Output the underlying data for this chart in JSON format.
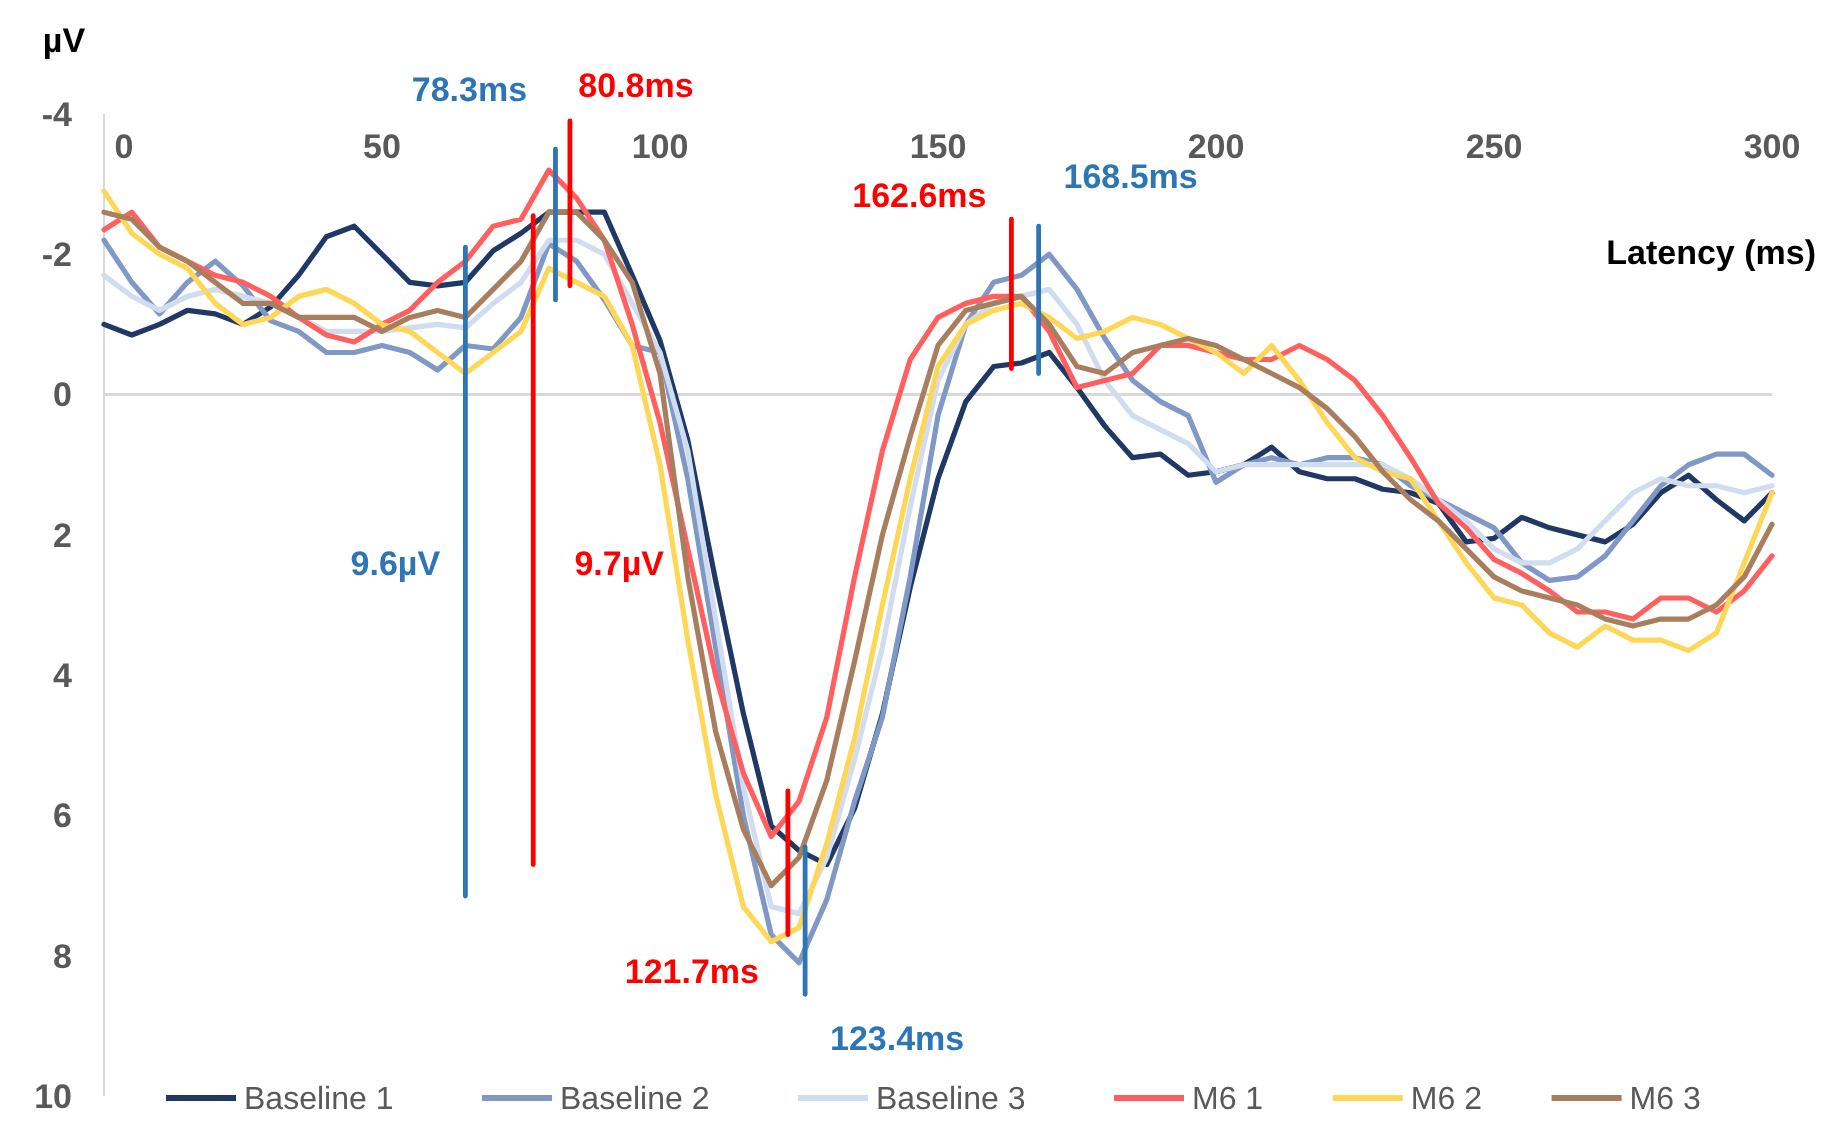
{
  "chart_data": {
    "type": "line",
    "xlabel": "Latency (ms)",
    "ylabel": "µV",
    "xlim": [
      0,
      300
    ],
    "xticks": [
      0,
      50,
      100,
      150,
      200,
      250,
      300
    ],
    "ylim": [
      10,
      -4
    ],
    "yticks": [
      -4,
      -2,
      0,
      2,
      4,
      6,
      8,
      10
    ],
    "legend": "bottom",
    "x": [
      0,
      5,
      10,
      15,
      20,
      25,
      30,
      35,
      40,
      45,
      50,
      55,
      60,
      65,
      70,
      75,
      80,
      85,
      90,
      95,
      100,
      105,
      110,
      115,
      120,
      125,
      130,
      135,
      140,
      145,
      150,
      155,
      160,
      165,
      170,
      175,
      180,
      185,
      190,
      195,
      200,
      205,
      210,
      215,
      220,
      225,
      230,
      235,
      240,
      245,
      250,
      255,
      260,
      265,
      270,
      275,
      280,
      285,
      290,
      295,
      300
    ],
    "series": [
      {
        "name": "Baseline 1",
        "color": "#1f3864",
        "values": [
          -1.0,
          -0.85,
          -1.0,
          -1.2,
          -1.15,
          -1.0,
          -1.25,
          -1.7,
          -2.25,
          -2.4,
          -2.0,
          -1.6,
          -1.55,
          -1.6,
          -2.05,
          -2.3,
          -2.6,
          -2.6,
          -2.6,
          -1.7,
          -0.77,
          0.65,
          2.65,
          4.55,
          6.15,
          6.5,
          6.7,
          5.9,
          4.55,
          2.75,
          1.2,
          0.1,
          -0.4,
          -0.45,
          -0.6,
          -0.1,
          0.45,
          0.9,
          0.85,
          1.15,
          1.1,
          1.0,
          0.75,
          1.1,
          1.2,
          1.2,
          1.35,
          1.4,
          1.55,
          2.1,
          2.05,
          1.75,
          1.9,
          2.0,
          2.1,
          1.85,
          1.4,
          1.15,
          1.5,
          1.8,
          1.4
        ]
      },
      {
        "name": "Baseline 2",
        "color": "#7f98c6",
        "values": [
          -2.2,
          -1.6,
          -1.15,
          -1.6,
          -1.9,
          -1.55,
          -1.05,
          -0.9,
          -0.6,
          -0.6,
          -0.7,
          -0.6,
          -0.35,
          -0.7,
          -0.65,
          -1.1,
          -2.15,
          -1.9,
          -1.35,
          -0.7,
          -0.6,
          1.2,
          3.6,
          6.0,
          7.7,
          8.1,
          7.2,
          5.8,
          4.6,
          2.6,
          0.3,
          -1.0,
          -1.6,
          -1.7,
          -2.0,
          -1.5,
          -0.8,
          -0.2,
          0.1,
          0.3,
          1.25,
          1.0,
          0.9,
          1.0,
          0.9,
          0.9,
          1.0,
          1.3,
          1.5,
          1.7,
          1.9,
          2.4,
          2.65,
          2.6,
          2.3,
          1.8,
          1.3,
          1.0,
          0.85,
          0.85,
          1.15
        ]
      },
      {
        "name": "Baseline 3",
        "color": "#d0dcef",
        "values": [
          -1.7,
          -1.4,
          -1.2,
          -1.4,
          -1.5,
          -1.4,
          -1.3,
          -1.1,
          -0.9,
          -0.9,
          -0.9,
          -0.95,
          -1.0,
          -0.95,
          -1.3,
          -1.6,
          -2.2,
          -2.2,
          -2.0,
          -1.3,
          -0.6,
          0.8,
          3.2,
          5.6,
          7.3,
          7.4,
          6.6,
          5.2,
          3.6,
          1.6,
          -0.2,
          -1.0,
          -1.3,
          -1.4,
          -1.5,
          -1.0,
          -0.2,
          0.3,
          0.5,
          0.7,
          1.1,
          1.0,
          1.0,
          1.0,
          1.0,
          1.0,
          1.0,
          1.2,
          1.5,
          1.8,
          2.2,
          2.4,
          2.4,
          2.2,
          1.8,
          1.4,
          1.2,
          1.3,
          1.3,
          1.4,
          1.3
        ]
      },
      {
        "name": "M6 1",
        "color": "#ff5f5f",
        "values": [
          -2.35,
          -2.6,
          -2.1,
          -1.9,
          -1.7,
          -1.6,
          -1.4,
          -1.1,
          -0.85,
          -0.75,
          -1.0,
          -1.2,
          -1.6,
          -1.9,
          -2.4,
          -2.5,
          -3.2,
          -2.8,
          -2.2,
          -1.0,
          0.4,
          2.2,
          4.0,
          5.4,
          6.3,
          5.8,
          4.6,
          2.6,
          0.8,
          -0.5,
          -1.1,
          -1.3,
          -1.4,
          -1.4,
          -0.9,
          -0.1,
          -0.2,
          -0.3,
          -0.7,
          -0.7,
          -0.6,
          -0.5,
          -0.5,
          -0.7,
          -0.5,
          -0.2,
          0.3,
          0.9,
          1.55,
          1.9,
          2.35,
          2.55,
          2.8,
          3.1,
          3.1,
          3.2,
          2.9,
          2.9,
          3.1,
          2.8,
          2.3
        ]
      },
      {
        "name": "M6 2",
        "color": "#ffd757",
        "values": [
          -2.9,
          -2.3,
          -2.0,
          -1.8,
          -1.3,
          -1.0,
          -1.1,
          -1.4,
          -1.5,
          -1.3,
          -1.0,
          -0.9,
          -0.6,
          -0.3,
          -0.6,
          -0.9,
          -1.8,
          -1.6,
          -1.4,
          -0.7,
          1.0,
          3.5,
          5.7,
          7.3,
          7.8,
          7.6,
          6.4,
          4.9,
          3.0,
          1.2,
          -0.4,
          -1.0,
          -1.2,
          -1.3,
          -1.1,
          -0.8,
          -0.9,
          -1.1,
          -1.0,
          -0.8,
          -0.6,
          -0.3,
          -0.7,
          -0.2,
          0.4,
          0.9,
          1.1,
          1.2,
          1.8,
          2.4,
          2.9,
          3.0,
          3.4,
          3.6,
          3.3,
          3.5,
          3.5,
          3.65,
          3.4,
          2.4,
          1.4
        ]
      },
      {
        "name": "M6 3",
        "color": "#a97e5e",
        "values": [
          -2.6,
          -2.5,
          -2.1,
          -1.9,
          -1.6,
          -1.3,
          -1.3,
          -1.1,
          -1.1,
          -1.1,
          -0.9,
          -1.1,
          -1.2,
          -1.1,
          -1.5,
          -1.9,
          -2.6,
          -2.6,
          -2.2,
          -1.6,
          -0.3,
          2.6,
          4.8,
          6.2,
          7.0,
          6.6,
          5.5,
          3.8,
          2.0,
          0.6,
          -0.7,
          -1.2,
          -1.3,
          -1.4,
          -1.0,
          -0.4,
          -0.3,
          -0.6,
          -0.7,
          -0.8,
          -0.7,
          -0.5,
          -0.3,
          -0.1,
          0.2,
          0.6,
          1.1,
          1.5,
          1.8,
          2.2,
          2.6,
          2.8,
          2.9,
          3.0,
          3.2,
          3.3,
          3.2,
          3.2,
          3.0,
          2.6,
          1.85
        ]
      },
      {
        "type": "line",
        "color": "#2e75b6",
        "x": [
          81.2,
          81.2
        ],
        "values": [
          -3.5,
          -1.35
        ]
      },
      {
        "type": "line",
        "color": "#ff0000",
        "x": [
          83.8,
          83.8
        ],
        "values": [
          -3.9,
          -1.55
        ]
      },
      {
        "type": "line",
        "color": "#2e75b6",
        "x": [
          65.0,
          65.0
        ],
        "values": [
          -2.1,
          7.15
        ]
      },
      {
        "type": "line",
        "color": "#ff0000",
        "x": [
          77.2,
          77.2
        ],
        "values": [
          -2.55,
          6.7
        ]
      },
      {
        "type": "line",
        "color": "#ff0000",
        "x": [
          123.0,
          123.0
        ],
        "values": [
          5.65,
          7.7
        ]
      },
      {
        "type": "line",
        "color": "#2e75b6",
        "x": [
          126.1,
          126.1
        ],
        "values": [
          6.45,
          8.55
        ]
      },
      {
        "type": "line",
        "color": "#ff0000",
        "x": [
          163.2,
          163.2
        ],
        "values": [
          -2.5,
          -0.37
        ]
      },
      {
        "type": "line",
        "color": "#2e75b6",
        "x": [
          168.1,
          168.1
        ],
        "values": [
          -2.4,
          -0.3
        ]
      }
    ],
    "annotations": [
      {
        "text": "78.3ms",
        "x": 81.2,
        "y": -3.5
      },
      {
        "text": "80.8ms",
        "x": 83.8,
        "y": -3.9
      },
      {
        "text": "9.6µV",
        "x": 65.0,
        "y": 2.4
      },
      {
        "text": "9.7µV",
        "x": 77.2,
        "y": 2.4
      },
      {
        "text": "121.7ms",
        "x": 123.0,
        "y": 7.7
      },
      {
        "text": "123.4ms",
        "x": 126.1,
        "y": 8.55
      },
      {
        "text": "162.6ms",
        "x": 163.2,
        "y": -2.5
      },
      {
        "text": "168.5ms",
        "x": 168.1,
        "y": -2.4
      }
    ]
  }
}
